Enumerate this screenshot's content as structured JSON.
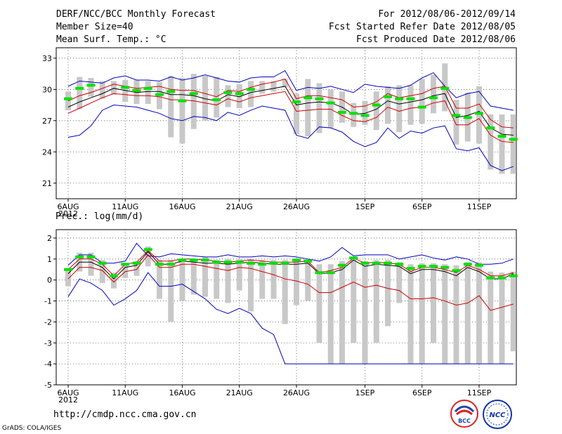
{
  "header": {
    "title": "DERF/NCC/BCC Monthly Forecast",
    "member_size": "Member Size=40",
    "variable": "Mean Surf. Temp.: °C",
    "period": "For 2012/08/06-2012/09/14",
    "refer_date": "Fcst Started Refer Date 2012/08/05",
    "produced_date": "Fcst Produced Date 2012/08/06"
  },
  "footer": {
    "url": "http://cmdp.ncc.cma.gov.cn",
    "grads_credit": "GrADS: COLA/IGES",
    "logo_left_text": "BCC",
    "logo_right_text": "NCC"
  },
  "colors": {
    "ensemble_mean": "#000000",
    "std_band": "#d00000",
    "extreme_band": "#0000c0",
    "observed_marker": "#00e000",
    "spread_bar": "#c8c8c8",
    "grid": "#555555"
  },
  "chart_data": [
    {
      "type": "line",
      "title": "Mean Surf. Temp.: °C",
      "x_tick_labels": [
        "6AUG",
        "11AUG",
        "16AUG",
        "21AUG",
        "26AUG",
        "1SEP",
        "6SEP",
        "11SEP"
      ],
      "x_tick_day_index": [
        0,
        5,
        10,
        15,
        20,
        26,
        31,
        36
      ],
      "x_year_label": "2012",
      "ylim": [
        19.5,
        34
      ],
      "yticks": [
        21,
        24,
        27,
        30,
        33
      ],
      "ytick_labels": [
        "21",
        "24",
        "27",
        "30",
        "33"
      ],
      "series": [
        {
          "name": "max",
          "values": [
            30.3,
            30.8,
            30.7,
            30.6,
            31.1,
            31.3,
            30.9,
            30.9,
            30.8,
            31.2,
            30.9,
            31.1,
            31.4,
            31.1,
            30.8,
            30.7,
            31.1,
            31.2,
            31.2,
            31.8,
            29.9,
            30.2,
            30.1,
            30.3,
            30.0,
            29.7,
            30.5,
            30.3,
            30.2,
            30.1,
            30.4,
            31.1,
            31.6,
            30.3,
            29.2,
            29.6,
            29.8,
            28.4,
            28.2,
            28.0
          ]
        },
        {
          "name": "mean_plus_std",
          "values": [
            28.9,
            29.4,
            29.7,
            30.1,
            30.5,
            30.3,
            30.1,
            30.2,
            30.3,
            30.0,
            29.9,
            29.9,
            29.6,
            29.3,
            29.9,
            29.8,
            30.2,
            30.5,
            30.7,
            31.0,
            29.1,
            29.4,
            29.4,
            29.2,
            29.0,
            28.3,
            28.4,
            28.8,
            29.6,
            29.2,
            29.4,
            29.6,
            30.1,
            30.3,
            28.2,
            28.2,
            28.6,
            27.1,
            26.4,
            26.3
          ]
        },
        {
          "name": "mean",
          "values": [
            28.3,
            28.8,
            29.2,
            29.6,
            30.1,
            29.9,
            29.7,
            29.8,
            29.8,
            29.5,
            29.5,
            29.4,
            29.1,
            28.9,
            29.5,
            29.3,
            29.7,
            29.9,
            30.1,
            30.3,
            28.5,
            28.7,
            28.8,
            28.7,
            28.3,
            27.6,
            27.7,
            28.1,
            28.9,
            28.6,
            28.8,
            29.0,
            29.4,
            29.6,
            27.3,
            27.5,
            27.9,
            26.3,
            25.7,
            25.6
          ]
        },
        {
          "name": "mean_minus_std",
          "values": [
            27.7,
            28.2,
            28.7,
            29.2,
            29.6,
            29.5,
            29.4,
            29.4,
            29.3,
            29.0,
            29.0,
            28.9,
            28.7,
            28.5,
            29.1,
            28.8,
            29.2,
            29.4,
            29.6,
            29.8,
            27.9,
            28.0,
            28.1,
            28.1,
            27.5,
            27.0,
            26.9,
            27.3,
            28.3,
            27.9,
            28.2,
            28.3,
            28.7,
            28.9,
            26.6,
            26.6,
            27.2,
            25.6,
            25.0,
            24.9
          ]
        },
        {
          "name": "min",
          "values": [
            25.4,
            25.6,
            26.5,
            28.0,
            28.5,
            28.4,
            28.3,
            28.0,
            27.7,
            27.2,
            27.0,
            27.4,
            27.3,
            27.0,
            27.8,
            27.5,
            28.0,
            28.4,
            28.2,
            28.0,
            25.6,
            25.3,
            26.4,
            26.3,
            25.9,
            25.0,
            24.5,
            24.9,
            26.3,
            25.3,
            26.0,
            25.8,
            26.3,
            26.5,
            24.3,
            24.1,
            24.4,
            22.7,
            22.2,
            22.6
          ]
        },
        {
          "name": "observed_marker",
          "values": [
            29.1,
            30.1,
            30.4,
            null,
            null,
            30.2,
            29.9,
            30.1,
            29.5,
            29.8,
            28.9,
            29.6,
            null,
            29.0,
            29.7,
            29.6,
            30.0,
            null,
            null,
            null,
            28.8,
            29.2,
            29.1,
            28.7,
            27.8,
            27.7,
            27.5,
            28.5,
            29.3,
            29.1,
            29.1,
            28.3,
            29.2,
            30.1,
            27.5,
            27.3,
            27.7,
            26.3,
            25.5,
            25.2
          ]
        },
        {
          "name": "spread_top",
          "values": [
            29.8,
            31.2,
            31.1,
            30.8,
            30.8,
            30.9,
            30.9,
            30.8,
            30.7,
            31.3,
            31.1,
            31.5,
            31.3,
            31.2,
            30.4,
            30.5,
            30.8,
            30.8,
            30.8,
            31.0,
            29.6,
            31.0,
            30.6,
            30.0,
            29.8,
            28.7,
            28.9,
            29.8,
            30.3,
            30.4,
            30.4,
            31.0,
            31.4,
            32.5,
            29.0,
            29.7,
            30.3,
            27.6,
            27.6,
            27.6
          ]
        },
        {
          "name": "spread_bottom",
          "values": [
            28.0,
            28.1,
            29.3,
            29.1,
            29.5,
            28.8,
            28.6,
            28.6,
            28.1,
            25.4,
            24.8,
            26.2,
            27.0,
            27.3,
            28.3,
            28.2,
            28.3,
            29.6,
            29.8,
            30.2,
            25.7,
            25.5,
            25.8,
            26.3,
            26.8,
            26.4,
            26.6,
            26.1,
            26.7,
            25.9,
            26.6,
            26.7,
            27.7,
            27.9,
            24.7,
            25.0,
            24.8,
            22.3,
            21.9,
            21.9
          ]
        }
      ]
    },
    {
      "type": "line",
      "title": "Prec.: log(mm/d)",
      "x_tick_labels": [
        "6AUG",
        "11AUG",
        "16AUG",
        "21AUG",
        "26AUG",
        "1SEP",
        "6SEP",
        "11SEP"
      ],
      "x_tick_day_index": [
        0,
        5,
        10,
        15,
        20,
        26,
        31,
        36
      ],
      "x_year_label": "2012",
      "ylim": [
        -5,
        2.4
      ],
      "yticks": [
        -5,
        -4,
        -3,
        -2,
        -1,
        0,
        1,
        2
      ],
      "ytick_labels": [
        "-5",
        "-4",
        "-3",
        "-2",
        "-1",
        "0",
        "1",
        "2"
      ],
      "series": [
        {
          "name": "max",
          "values": [
            0.7,
            1.2,
            1.2,
            0.8,
            0.8,
            0.9,
            1.75,
            1.15,
            1.1,
            1.25,
            1.2,
            1.15,
            1.1,
            1.1,
            1.2,
            1.1,
            1.1,
            1.15,
            1.1,
            1.15,
            1.1,
            1.0,
            0.9,
            1.1,
            1.55,
            1.15,
            1.2,
            1.2,
            1.2,
            1.0,
            1.1,
            1.2,
            1.05,
            0.95,
            1.1,
            1.0,
            0.75,
            0.75,
            0.8,
            1.0
          ]
        },
        {
          "name": "mean_plus_std",
          "values": [
            0.5,
            1.0,
            1.0,
            0.75,
            0.2,
            0.75,
            0.85,
            1.4,
            0.9,
            0.9,
            1.0,
            1.0,
            0.95,
            0.9,
            0.85,
            0.9,
            0.95,
            0.9,
            0.85,
            0.85,
            0.85,
            0.9,
            0.35,
            0.45,
            0.6,
            1.05,
            0.8,
            0.85,
            0.8,
            0.75,
            0.4,
            0.6,
            0.6,
            0.5,
            0.35,
            0.7,
            0.5,
            0.2,
            0.2,
            0.35
          ]
        },
        {
          "name": "mean",
          "values": [
            0.3,
            0.85,
            0.85,
            0.6,
            0.05,
            0.6,
            0.7,
            1.35,
            0.75,
            0.75,
            0.9,
            0.85,
            0.8,
            0.8,
            0.75,
            0.8,
            0.85,
            0.8,
            0.75,
            0.75,
            0.75,
            0.8,
            0.3,
            0.35,
            0.5,
            0.95,
            0.65,
            0.75,
            0.7,
            0.65,
            0.3,
            0.5,
            0.5,
            0.4,
            0.2,
            0.6,
            0.4,
            0.05,
            0.05,
            0.3
          ]
        },
        {
          "name": "mean_minus_std",
          "values": [
            0.05,
            0.6,
            0.6,
            0.45,
            -0.1,
            0.4,
            0.5,
            1.2,
            0.6,
            0.6,
            0.75,
            0.75,
            0.65,
            0.55,
            0.45,
            0.6,
            0.55,
            0.4,
            0.25,
            0.05,
            -0.05,
            -0.2,
            -0.6,
            -0.6,
            -0.35,
            -0.1,
            -0.35,
            -0.25,
            -0.4,
            -0.5,
            -0.9,
            -0.9,
            -0.85,
            -1.0,
            -1.2,
            -1.1,
            -0.75,
            -1.45,
            -1.3,
            -1.15
          ]
        },
        {
          "name": "min",
          "values": [
            -0.8,
            0.05,
            -0.15,
            -0.5,
            -1.2,
            -0.9,
            -0.5,
            0.35,
            -0.3,
            -0.3,
            -0.2,
            -0.55,
            -0.9,
            -1.4,
            -1.6,
            -1.35,
            -1.6,
            -2.3,
            -2.6,
            -4.0,
            -4.0,
            -4.0,
            -4.0,
            -4.0,
            -4.0,
            -4.0,
            -4.0,
            -4.0,
            -4.0,
            -4.0,
            -4.0,
            -4.0,
            -4.0,
            -4.0,
            -4.0,
            -4.0,
            -4.0,
            -4.0,
            -4.0,
            -4.0
          ]
        },
        {
          "name": "observed_marker",
          "values": [
            0.5,
            1.1,
            1.1,
            0.8,
            0.2,
            0.75,
            0.8,
            1.45,
            0.75,
            0.75,
            0.95,
            0.95,
            0.95,
            0.85,
            0.85,
            0.85,
            0.8,
            0.75,
            0.8,
            0.8,
            0.95,
            0.9,
            0.35,
            0.35,
            0.7,
            1.05,
            0.8,
            0.8,
            0.8,
            0.75,
            0.55,
            0.65,
            0.65,
            0.6,
            0.45,
            0.75,
            0.7,
            0.1,
            0.1,
            0.2
          ]
        },
        {
          "name": "spread_top",
          "values": [
            0.55,
            1.3,
            1.3,
            0.95,
            0.35,
            0.75,
            0.9,
            1.6,
            0.95,
            0.95,
            1.0,
            1.0,
            1.1,
            0.95,
            1.0,
            1.0,
            1.0,
            0.95,
            0.95,
            0.95,
            1.0,
            0.95,
            0.75,
            0.75,
            0.9,
            1.1,
            0.9,
            0.95,
            0.95,
            0.85,
            0.75,
            0.8,
            0.8,
            0.75,
            0.7,
            0.85,
            0.85,
            0.4,
            0.35,
            0.4
          ]
        },
        {
          "name": "spread_bottom",
          "values": [
            -0.3,
            0.4,
            0.2,
            -0.15,
            -0.4,
            0.1,
            0.2,
            0.65,
            -0.9,
            -2.0,
            -1.0,
            -0.7,
            -0.8,
            -0.9,
            -1.1,
            -0.5,
            -1.5,
            -0.9,
            -0.9,
            -2.1,
            -1.2,
            -1.0,
            -3.0,
            -4.0,
            -4.0,
            -3.0,
            -4.0,
            -3.0,
            -2.2,
            -1.1,
            -4.0,
            -4.0,
            -3.0,
            -4.0,
            -4.0,
            -4.0,
            -4.0,
            -4.0,
            -4.0,
            -3.4
          ]
        }
      ]
    }
  ]
}
